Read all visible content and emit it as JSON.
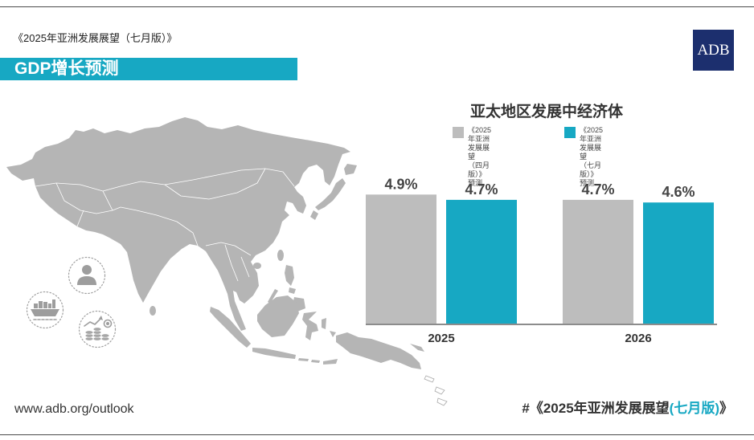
{
  "header": {
    "publication_title": "《2025年亚洲发展展望（七月版）》",
    "banner_title": "GDP增长预测",
    "logo_text": "ADB"
  },
  "colors": {
    "accent_teal": "#17a8c3",
    "logo_navy": "#1c2f6e",
    "map_gray": "#b5b5b5",
    "frame_line": "#4a4a4a",
    "text_dark": "#333333"
  },
  "icons": {
    "map": "asia-pacific-map",
    "people": "person-icon",
    "trade": "cargo-ship-icon",
    "finance": "coins-growth-icon",
    "logo": "adb-logo"
  },
  "chart_data": {
    "type": "bar",
    "title": "亚太地区发展中经济体",
    "categories": [
      "2025",
      "2026"
    ],
    "series": [
      {
        "name": "《2025年亚洲发展展望\n（四月版）》预测",
        "values": [
          4.9,
          4.7
        ],
        "labels": [
          "4.9%",
          "4.7%"
        ],
        "color": "#bdbdbd"
      },
      {
        "name": "《2025年亚洲发展展望\n（七月版）》预测",
        "values": [
          4.7,
          4.6
        ],
        "labels": [
          "4.7%",
          "4.6%"
        ],
        "color": "#17a8c3"
      }
    ],
    "xlabel": "",
    "ylabel": "",
    "ylim": [
      0,
      5
    ],
    "grid": false,
    "legend": "top"
  },
  "footer": {
    "url": "www.adb.org/outlook",
    "hashtag_prefix": "#《2025年亚洲发展展望",
    "hashtag_highlight": "(七月版)",
    "hashtag_suffix": "》"
  }
}
